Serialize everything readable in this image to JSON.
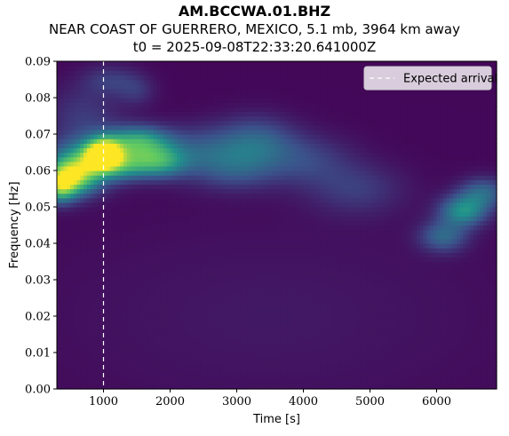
{
  "chart_data": {
    "type": "heatmap",
    "title": "AM.BCCWA.01.BHZ",
    "subtitle": "NEAR COAST OF GUERRERO, MEXICO, 5.1 mb, 3964 km away",
    "subtitle2": "t0 = 2025-09-08T22:33:20.641000Z",
    "xlabel": "Time [s]",
    "ylabel": "Frequency [Hz]",
    "xlim": [
      300,
      6900
    ],
    "ylim": [
      0,
      0.09
    ],
    "xticks": [
      1000,
      2000,
      3000,
      4000,
      5000,
      6000
    ],
    "xtick_labels": [
      "1000",
      "2000",
      "3000",
      "4000",
      "5000",
      "6000"
    ],
    "yticks": [
      0,
      0.01,
      0.02,
      0.03,
      0.04,
      0.05,
      0.06,
      0.07,
      0.08,
      0.09
    ],
    "ytick_labels": [
      "0.00",
      "0.01",
      "0.02",
      "0.03",
      "0.04",
      "0.05",
      "0.06",
      "0.07",
      "0.08",
      "0.09"
    ],
    "colormap": "viridis",
    "expected_arrival": 1000,
    "legend": {
      "label": "Expected arrival",
      "placement": "top-right"
    },
    "energy_blobs": [
      {
        "t": 1000,
        "f": 0.0645,
        "st": 180,
        "sf": 0.0028,
        "a": 1.0
      },
      {
        "t": 700,
        "f": 0.062,
        "st": 350,
        "sf": 0.0045,
        "a": 0.55
      },
      {
        "t": 500,
        "f": 0.058,
        "st": 250,
        "sf": 0.0035,
        "a": 0.6
      },
      {
        "t": 350,
        "f": 0.0555,
        "st": 150,
        "sf": 0.003,
        "a": 0.45
      },
      {
        "t": 1500,
        "f": 0.068,
        "st": 350,
        "sf": 0.003,
        "a": 0.55
      },
      {
        "t": 1800,
        "f": 0.0625,
        "st": 300,
        "sf": 0.003,
        "a": 0.5
      },
      {
        "t": 1300,
        "f": 0.0615,
        "st": 250,
        "sf": 0.0028,
        "a": 0.35
      },
      {
        "t": 2500,
        "f": 0.065,
        "st": 500,
        "sf": 0.005,
        "a": 0.25
      },
      {
        "t": 3300,
        "f": 0.068,
        "st": 400,
        "sf": 0.005,
        "a": 0.25
      },
      {
        "t": 3000,
        "f": 0.06,
        "st": 400,
        "sf": 0.004,
        "a": 0.15
      },
      {
        "t": 4000,
        "f": 0.063,
        "st": 500,
        "sf": 0.005,
        "a": 0.18
      },
      {
        "t": 4800,
        "f": 0.055,
        "st": 500,
        "sf": 0.005,
        "a": 0.15
      },
      {
        "t": 6400,
        "f": 0.049,
        "st": 250,
        "sf": 0.003,
        "a": 0.45
      },
      {
        "t": 6100,
        "f": 0.042,
        "st": 250,
        "sf": 0.003,
        "a": 0.3
      },
      {
        "t": 6700,
        "f": 0.054,
        "st": 250,
        "sf": 0.003,
        "a": 0.3
      },
      {
        "t": 1100,
        "f": 0.085,
        "st": 300,
        "sf": 0.003,
        "a": 0.15
      },
      {
        "t": 1500,
        "f": 0.082,
        "st": 200,
        "sf": 0.003,
        "a": 0.12
      },
      {
        "t": 700,
        "f": 0.075,
        "st": 400,
        "sf": 0.006,
        "a": 0.15
      },
      {
        "t": 3500,
        "f": 0.02,
        "st": 2500,
        "sf": 0.02,
        "a": 0.05
      }
    ]
  }
}
